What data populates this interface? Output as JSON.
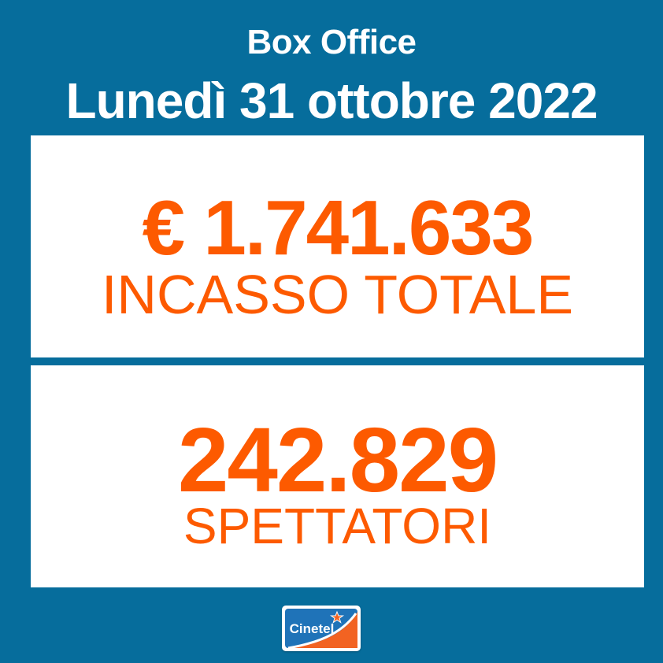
{
  "header": {
    "subtitle": "Box Office",
    "title": "Lunedì 31 ottobre 2022"
  },
  "stats": {
    "revenue_value": "€ 1.741.633",
    "revenue_label": "INCASSO TOTALE",
    "attendance_value": "242.829",
    "attendance_label": "SPETTATORI"
  },
  "logo": {
    "text": "Cinetel",
    "icon": "star-icon"
  },
  "colors": {
    "background": "#066d9c",
    "panel": "#ffffff",
    "accent": "#fd5a00",
    "header_text": "#ffffff"
  }
}
